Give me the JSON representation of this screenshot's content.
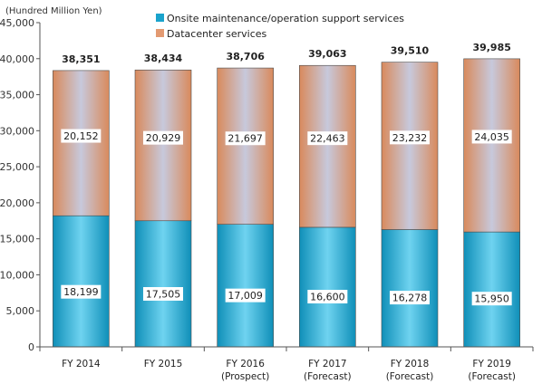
{
  "chart_data": {
    "type": "bar",
    "stacked": true,
    "unit_label": "(Hundred Million Yen)",
    "categories": [
      [
        "FY 2014"
      ],
      [
        "FY 2015"
      ],
      [
        "FY 2016",
        "(Prospect)"
      ],
      [
        "FY 2017",
        "(Forecast)"
      ],
      [
        "FY 2018",
        "(Forecast)"
      ],
      [
        "FY 2019",
        "(Forecast)"
      ]
    ],
    "series": [
      {
        "name": "Onsite maintenance/operation support services",
        "values": [
          18199,
          17505,
          17009,
          16600,
          16278,
          15950
        ],
        "labels": [
          "18,199",
          "17,505",
          "17,009",
          "16,600",
          "16,278",
          "15,950"
        ],
        "color": "#1aa3cc"
      },
      {
        "name": "Datacenter services",
        "values": [
          20152,
          20929,
          21697,
          22463,
          23232,
          24035
        ],
        "labels": [
          "20,152",
          "20,929",
          "21,697",
          "22,463",
          "23,232",
          "24,035"
        ],
        "color": "#e39a72"
      }
    ],
    "totals": [
      "38,351",
      "38,434",
      "38,706",
      "39,063",
      "39,510",
      "39,985"
    ],
    "total_values": [
      38351,
      38434,
      38706,
      39063,
      39510,
      39985
    ],
    "ylim": [
      0,
      45000
    ],
    "yticks": [
      0,
      5000,
      10000,
      15000,
      20000,
      25000,
      30000,
      35000,
      40000,
      45000
    ],
    "ytick_labels": [
      "0",
      "5,000",
      "10,000",
      "15,000",
      "20,000",
      "25,000",
      "30,000",
      "35,000",
      "40,000",
      "45,000"
    ],
    "grid": false,
    "legend_position": "top"
  }
}
